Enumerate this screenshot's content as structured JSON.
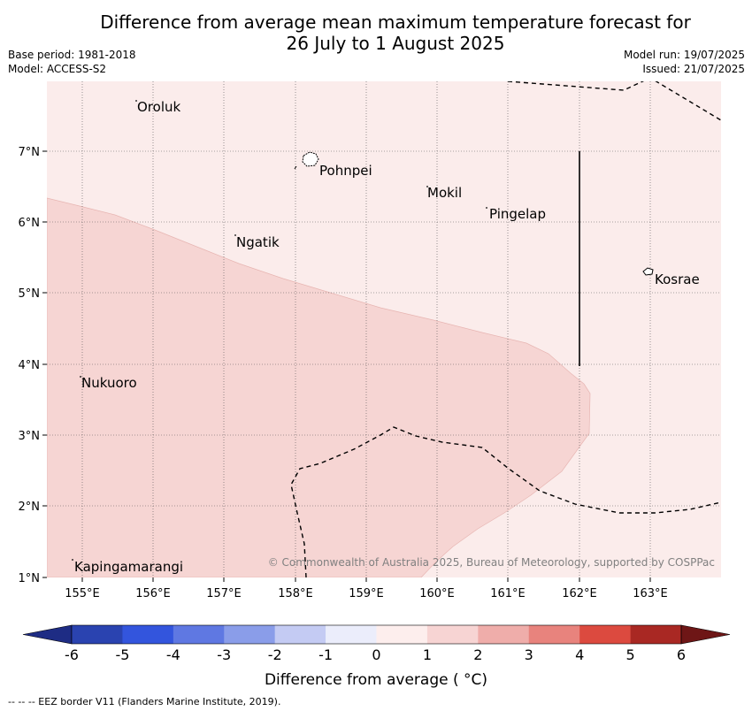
{
  "title_line1": "Difference from average mean maximum temperature forecast for",
  "title_line2": "26 July to 1 August 2025",
  "base_period": "Base period: 1981-2018",
  "model": "Model: ACCESS-S2",
  "model_run": "Model run: 19/07/2025",
  "issued": "Issued: 21/07/2025",
  "x_ticks": [
    "155°E",
    "156°E",
    "157°E",
    "158°E",
    "159°E",
    "160°E",
    "161°E",
    "162°E",
    "163°E"
  ],
  "y_ticks": [
    "7°N",
    "6°N",
    "5°N",
    "4°N",
    "3°N",
    "2°N",
    "1°N"
  ],
  "places": [
    "Oroluk",
    "Pohnpei",
    "Mokil",
    "Pingelap",
    "Ngatik",
    "Kosrae",
    "Nukuoro",
    "Kapingamarangi"
  ],
  "copyright": "© Commonwealth of Australia 2025, Bureau of Meteorology, supported by COSPPac",
  "colorbar": {
    "ticks": [
      "-6",
      "-5",
      "-4",
      "-3",
      "-2",
      "-1",
      "0",
      "1",
      "2",
      "3",
      "4",
      "5",
      "6"
    ],
    "colors": [
      "#1e2c84",
      "#2a43b0",
      "#3355dd",
      "#5f78e2",
      "#8a9de9",
      "#c4cbf3",
      "#ebedfb",
      "#fdeeed",
      "#f7d4d3",
      "#efadaa",
      "#e8837d",
      "#dc4a3f",
      "#a92823",
      "#6e1616"
    ],
    "label": "Difference from average ( °C)"
  },
  "footnote": "--  --  -- EEZ border V11 (Flanders Marine Institute, 2019).",
  "colors": {
    "anomaly_0_1": "#fbeceb",
    "anomaly_1_2": "#f6d5d3"
  }
}
